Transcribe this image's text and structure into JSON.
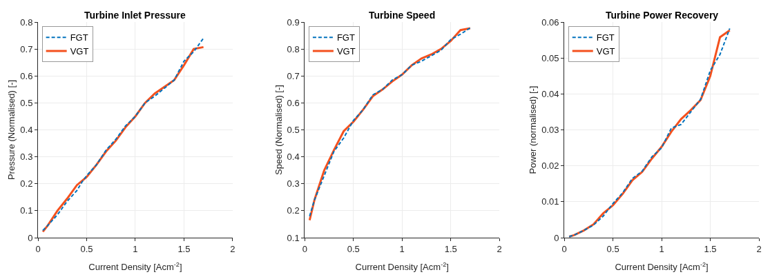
{
  "chart_data": [
    {
      "type": "line",
      "title": "Turbine Inlet Pressure",
      "xlabel": "Current Density [Acm$^{-2}$]",
      "ylabel": "Pressure (Normalised) [-]",
      "xlim": [
        0,
        2
      ],
      "xticks": [
        0,
        0.5,
        1,
        1.5,
        2
      ],
      "ylim": [
        0,
        0.8
      ],
      "yticks": [
        0,
        0.1,
        0.2,
        0.3,
        0.4,
        0.5,
        0.6,
        0.7,
        0.8
      ],
      "grid": true,
      "legend": "top left",
      "x": [
        0.05,
        0.1,
        0.2,
        0.3,
        0.4,
        0.45,
        0.5,
        0.6,
        0.7,
        0.8,
        0.9,
        1.0,
        1.1,
        1.2,
        1.3,
        1.4,
        1.5,
        1.6,
        1.7
      ],
      "series": [
        {
          "name": "FGT",
          "color": "#0072bd",
          "line_style": "dashed",
          "values": [
            0.027,
            0.045,
            0.085,
            0.135,
            0.175,
            0.205,
            0.23,
            0.27,
            0.325,
            0.365,
            0.415,
            0.45,
            0.5,
            0.525,
            0.555,
            0.585,
            0.655,
            0.69,
            0.74
          ]
        },
        {
          "name": "VGT",
          "color": "#f4511e",
          "line_style": "solid",
          "values": [
            0.022,
            0.045,
            0.1,
            0.145,
            0.195,
            0.21,
            0.225,
            0.27,
            0.32,
            0.36,
            0.41,
            0.45,
            0.5,
            0.535,
            0.56,
            0.585,
            0.64,
            0.7,
            0.707
          ]
        }
      ]
    },
    {
      "type": "line",
      "title": "Turbine Speed",
      "xlabel": "Current Density [Acm$^{-2}$]",
      "ylabel": "Speed (Normalised) [-]",
      "xlim": [
        0,
        2
      ],
      "xticks": [
        0,
        0.5,
        1,
        1.5,
        2
      ],
      "ylim": [
        0.1,
        0.9
      ],
      "yticks": [
        0.1,
        0.2,
        0.3,
        0.4,
        0.5,
        0.6,
        0.7,
        0.8,
        0.9
      ],
      "grid": true,
      "legend": "top left",
      "x": [
        0.05,
        0.1,
        0.2,
        0.3,
        0.4,
        0.5,
        0.6,
        0.7,
        0.8,
        0.9,
        1.0,
        1.1,
        1.2,
        1.3,
        1.4,
        1.5,
        1.6,
        1.7
      ],
      "series": [
        {
          "name": "FGT",
          "color": "#0072bd",
          "line_style": "dashed",
          "values": [
            0.18,
            0.24,
            0.33,
            0.42,
            0.47,
            0.535,
            0.575,
            0.63,
            0.65,
            0.685,
            0.705,
            0.74,
            0.755,
            0.775,
            0.795,
            0.835,
            0.855,
            0.878
          ]
        },
        {
          "name": "VGT",
          "color": "#f4511e",
          "line_style": "solid",
          "values": [
            0.165,
            0.24,
            0.35,
            0.425,
            0.495,
            0.53,
            0.575,
            0.625,
            0.65,
            0.68,
            0.705,
            0.74,
            0.765,
            0.78,
            0.8,
            0.83,
            0.87,
            0.877
          ]
        }
      ]
    },
    {
      "type": "line",
      "title": "Turbine Power Recovery",
      "xlabel": "Current Density [Acm$^{-2}$]",
      "ylabel": "Power (normalised) [-]",
      "xlim": [
        0,
        2
      ],
      "xticks": [
        0,
        0.5,
        1,
        1.5,
        2
      ],
      "ylim": [
        0,
        0.06
      ],
      "yticks": [
        0,
        0.01,
        0.02,
        0.03,
        0.04,
        0.05,
        0.06
      ],
      "grid": true,
      "legend": "top left",
      "x": [
        0.05,
        0.1,
        0.2,
        0.3,
        0.4,
        0.5,
        0.6,
        0.7,
        0.8,
        0.9,
        1.0,
        1.1,
        1.2,
        1.3,
        1.4,
        1.5,
        1.6,
        1.7
      ],
      "series": [
        {
          "name": "FGT",
          "color": "#0072bd",
          "line_style": "dashed",
          "values": [
            0.0003,
            0.0007,
            0.002,
            0.0035,
            0.006,
            0.0095,
            0.0125,
            0.0165,
            0.0185,
            0.0225,
            0.025,
            0.0305,
            0.0315,
            0.035,
            0.0385,
            0.0465,
            0.051,
            0.0582
          ]
        },
        {
          "name": "VGT",
          "color": "#f4511e",
          "line_style": "solid",
          "values": [
            0.0003,
            0.0007,
            0.002,
            0.0037,
            0.0068,
            0.009,
            0.0122,
            0.016,
            0.0183,
            0.022,
            0.0253,
            0.0295,
            0.033,
            0.0355,
            0.0383,
            0.045,
            0.0558,
            0.0577
          ]
        }
      ]
    }
  ]
}
